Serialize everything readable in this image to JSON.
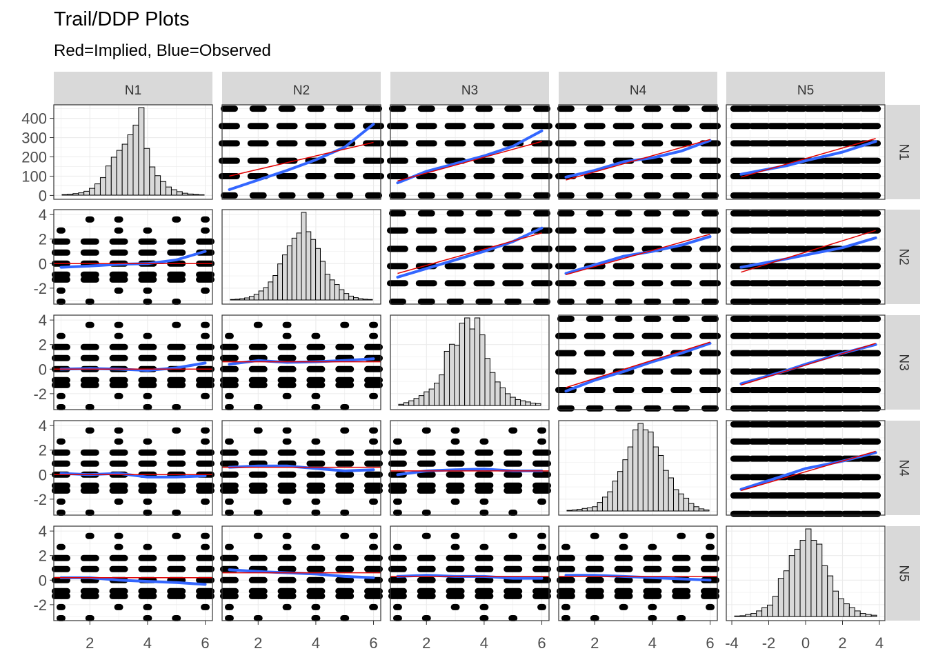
{
  "title": "Trail/DDP Plots",
  "subtitle": "Red=Implied, Blue=Observed",
  "colors": {
    "implied": "#e00000",
    "observed": "#3366ff",
    "strip": "#d9d9d9",
    "bar_fill": "#d9d9d9",
    "grid": "#ebebeb"
  },
  "chart_data": {
    "type": "scatter",
    "variables": [
      "N1",
      "N2",
      "N3",
      "N4",
      "N5"
    ],
    "legend_note": "Red=Implied, Blue=Observed",
    "x_axis": {
      "N1": {
        "ticks": [
          "2",
          "4",
          "6"
        ],
        "range": [
          0.75,
          6.25
        ]
      },
      "N2": {
        "ticks": [
          "2",
          "4",
          "6"
        ],
        "range": [
          0.75,
          6.25
        ]
      },
      "N3": {
        "ticks": [
          "2",
          "4",
          "6"
        ],
        "range": [
          0.75,
          6.25
        ]
      },
      "N4": {
        "ticks": [
          "2",
          "4",
          "6"
        ],
        "range": [
          0.75,
          6.25
        ]
      },
      "N5": {
        "ticks": [
          "-4",
          "-2",
          "0",
          "2",
          "4"
        ],
        "range": [
          -4.3,
          4.3
        ]
      }
    },
    "y_axis": {
      "N1": {
        "ticks": [
          "400",
          "300",
          "200",
          "100",
          "0"
        ],
        "range": [
          -20,
          470
        ]
      },
      "N2": {
        "ticks": [
          "4",
          "2",
          "0",
          "-2"
        ],
        "range": [
          -3.3,
          4.4
        ]
      },
      "N3": {
        "ticks": [
          "4",
          "2",
          "0",
          "-2"
        ],
        "range": [
          -3.3,
          4.4
        ]
      },
      "N4": {
        "ticks": [
          "4",
          "2",
          "0",
          "-2"
        ],
        "range": [
          -3.3,
          4.4
        ]
      },
      "N5": {
        "ticks": [
          "4",
          "2",
          "0",
          "-2"
        ],
        "range": [
          -3.3,
          4.4
        ]
      }
    },
    "histograms": {
      "N1": {
        "counts": [
          3,
          5,
          8,
          12,
          20,
          35,
          58,
          90,
          150,
          195,
          230,
          262,
          310,
          360,
          450,
          240,
          145,
          100,
          70,
          42,
          28,
          18,
          10,
          6,
          4,
          2
        ]
      },
      "N2": {
        "counts": [
          2,
          3,
          5,
          8,
          14,
          22,
          35,
          48,
          70,
          95,
          140,
          175,
          210,
          240,
          260,
          340,
          265,
          235,
          200,
          150,
          100,
          78,
          60,
          40,
          25,
          15,
          9,
          5,
          3,
          2
        ]
      },
      "N3": {
        "counts": [
          5,
          12,
          20,
          30,
          42,
          58,
          70,
          95,
          130,
          230,
          260,
          255,
          350,
          372,
          325,
          372,
          300,
          200,
          140,
          100,
          75,
          50,
          35,
          25,
          20,
          15,
          10,
          8
        ]
      },
      "N4": {
        "counts": [
          3,
          5,
          8,
          12,
          15,
          20,
          40,
          65,
          90,
          140,
          185,
          240,
          300,
          380,
          410,
          380,
          370,
          300,
          260,
          190,
          155,
          100,
          80,
          60,
          35,
          20,
          10,
          5
        ]
      },
      "N5": {
        "counts": [
          2,
          3,
          8,
          12,
          22,
          35,
          45,
          80,
          150,
          180,
          240,
          265,
          300,
          345,
          300,
          285,
          200,
          160,
          100,
          70,
          50,
          35,
          22,
          12,
          8,
          5
        ]
      }
    },
    "upper_levels": {
      "N1": [
        0,
        100,
        180,
        270,
        360,
        450
      ],
      "N2": [
        -3.1,
        -1.6,
        -0.2,
        1.2,
        2.7,
        4.1
      ],
      "N3": [
        -3.2,
        -1.7,
        -0.2,
        1.3,
        2.7,
        4.1
      ],
      "N4": [
        -3.2,
        -1.7,
        -0.2,
        1.3,
        2.7,
        4.1
      ],
      "N5": [
        -3.2,
        -1.7,
        -0.2,
        1.3,
        2.7,
        4.1
      ]
    },
    "panels": [
      {
        "row": "N1",
        "col": "N2",
        "implied": [
          [
            1,
            100
          ],
          [
            6,
            275
          ]
        ],
        "observed": [
          [
            1,
            30
          ],
          [
            2,
            80
          ],
          [
            3,
            130
          ],
          [
            4,
            185
          ],
          [
            5,
            250
          ],
          [
            6,
            370
          ]
        ]
      },
      {
        "row": "N1",
        "col": "N3",
        "implied": [
          [
            1,
            75
          ],
          [
            6,
            280
          ]
        ],
        "observed": [
          [
            1,
            65
          ],
          [
            2,
            125
          ],
          [
            3,
            165
          ],
          [
            4,
            205
          ],
          [
            5,
            255
          ],
          [
            6,
            335
          ]
        ]
      },
      {
        "row": "N1",
        "col": "N4",
        "implied": [
          [
            1,
            80
          ],
          [
            6,
            290
          ]
        ],
        "observed": [
          [
            1,
            95
          ],
          [
            2,
            130
          ],
          [
            3,
            175
          ],
          [
            4,
            195
          ],
          [
            5,
            230
          ],
          [
            6,
            285
          ]
        ]
      },
      {
        "row": "N1",
        "col": "N5",
        "implied": [
          [
            -3.5,
            95
          ],
          [
            3.8,
            295
          ]
        ],
        "observed": [
          [
            -3.5,
            110
          ],
          [
            -1,
            155
          ],
          [
            0,
            180
          ],
          [
            2,
            225
          ],
          [
            3.8,
            280
          ]
        ]
      },
      {
        "row": "N2",
        "col": "N3",
        "implied": [
          [
            1,
            -0.8
          ],
          [
            6,
            2.5
          ]
        ],
        "observed": [
          [
            1,
            -1.1
          ],
          [
            2,
            -0.4
          ],
          [
            3,
            0.3
          ],
          [
            4,
            1.0
          ],
          [
            5,
            1.8
          ],
          [
            6,
            2.9
          ]
        ]
      },
      {
        "row": "N2",
        "col": "N4",
        "implied": [
          [
            1,
            -0.9
          ],
          [
            6,
            2.4
          ]
        ],
        "observed": [
          [
            1,
            -0.8
          ],
          [
            2,
            -0.1
          ],
          [
            3,
            0.6
          ],
          [
            4,
            1.0
          ],
          [
            5,
            1.5
          ],
          [
            6,
            2.2
          ]
        ]
      },
      {
        "row": "N2",
        "col": "N5",
        "implied": [
          [
            -3.5,
            -0.7
          ],
          [
            3.8,
            2.7
          ]
        ],
        "observed": [
          [
            -3.5,
            -0.3
          ],
          [
            -1,
            0.4
          ],
          [
            0,
            0.7
          ],
          [
            2,
            1.3
          ],
          [
            3.8,
            2.1
          ]
        ]
      },
      {
        "row": "N3",
        "col": "N4",
        "implied": [
          [
            1,
            -1.5
          ],
          [
            6,
            2.2
          ]
        ],
        "observed": [
          [
            1,
            -1.8
          ],
          [
            2,
            -0.9
          ],
          [
            3,
            -0.2
          ],
          [
            4,
            0.6
          ],
          [
            5,
            1.3
          ],
          [
            6,
            2.1
          ]
        ]
      },
      {
        "row": "N3",
        "col": "N5",
        "implied": [
          [
            -3.5,
            -1.3
          ],
          [
            3.8,
            2.1
          ]
        ],
        "observed": [
          [
            -3.5,
            -1.2
          ],
          [
            -1,
            -0.1
          ],
          [
            0,
            0.4
          ],
          [
            2,
            1.3
          ],
          [
            3.8,
            2.0
          ]
        ]
      },
      {
        "row": "N4",
        "col": "N5",
        "implied": [
          [
            -3.5,
            -1.3
          ],
          [
            3.8,
            1.9
          ]
        ],
        "observed": [
          [
            -3.5,
            -1.2
          ],
          [
            -1,
            0.0
          ],
          [
            0,
            0.5
          ],
          [
            2,
            1.1
          ],
          [
            3.8,
            1.8
          ]
        ]
      },
      {
        "row": "N2",
        "col": "N1",
        "implied": [
          [
            0.75,
            0.0
          ],
          [
            6.25,
            0.0
          ]
        ],
        "observed": [
          [
            1,
            -0.3
          ],
          [
            2,
            -0.2
          ],
          [
            3,
            -0.05
          ],
          [
            4,
            0.0
          ],
          [
            5,
            0.3
          ],
          [
            6,
            1.0
          ]
        ]
      },
      {
        "row": "N3",
        "col": "N1",
        "implied": [
          [
            0.75,
            0.0
          ],
          [
            6.25,
            0.0
          ]
        ],
        "observed": [
          [
            1,
            0.0
          ],
          [
            2,
            0.05
          ],
          [
            3,
            0.0
          ],
          [
            4,
            -0.1
          ],
          [
            5,
            0.1
          ],
          [
            6,
            0.5
          ]
        ]
      },
      {
        "row": "N3",
        "col": "N2",
        "implied": [
          [
            0.75,
            0.6
          ],
          [
            6.25,
            0.6
          ]
        ],
        "observed": [
          [
            1,
            0.4
          ],
          [
            2,
            0.7
          ],
          [
            3,
            0.55
          ],
          [
            4,
            0.6
          ],
          [
            5,
            0.7
          ],
          [
            6,
            0.85
          ]
        ]
      },
      {
        "row": "N4",
        "col": "N1",
        "implied": [
          [
            0.75,
            0.0
          ],
          [
            6.25,
            0.0
          ]
        ],
        "observed": [
          [
            1,
            0.1
          ],
          [
            2,
            0.0
          ],
          [
            3,
            0.1
          ],
          [
            4,
            -0.2
          ],
          [
            5,
            -0.2
          ],
          [
            6,
            -0.1
          ]
        ]
      },
      {
        "row": "N4",
        "col": "N2",
        "implied": [
          [
            0.75,
            0.6
          ],
          [
            6.25,
            0.6
          ]
        ],
        "observed": [
          [
            1,
            0.6
          ],
          [
            2,
            0.7
          ],
          [
            3,
            0.7
          ],
          [
            4,
            0.5
          ],
          [
            5,
            0.3
          ],
          [
            6,
            0.4
          ]
        ]
      },
      {
        "row": "N4",
        "col": "N3",
        "implied": [
          [
            0.75,
            0.3
          ],
          [
            6.25,
            0.3
          ]
        ],
        "observed": [
          [
            1,
            0.0
          ],
          [
            2,
            0.3
          ],
          [
            3,
            0.4
          ],
          [
            4,
            0.45
          ],
          [
            5,
            0.3
          ],
          [
            6,
            0.3
          ]
        ]
      },
      {
        "row": "N5",
        "col": "N1",
        "implied": [
          [
            0.75,
            0.2
          ],
          [
            6.25,
            0.2
          ]
        ],
        "observed": [
          [
            1,
            0.2
          ],
          [
            2,
            0.2
          ],
          [
            3,
            0.0
          ],
          [
            4,
            -0.1
          ],
          [
            5,
            -0.2
          ],
          [
            6,
            -0.35
          ]
        ]
      },
      {
        "row": "N5",
        "col": "N2",
        "implied": [
          [
            0.75,
            0.6
          ],
          [
            6.25,
            0.6
          ]
        ],
        "observed": [
          [
            1,
            0.85
          ],
          [
            2,
            0.7
          ],
          [
            3,
            0.6
          ],
          [
            4,
            0.5
          ],
          [
            5,
            0.3
          ],
          [
            6,
            0.2
          ]
        ]
      },
      {
        "row": "N5",
        "col": "N3",
        "implied": [
          [
            0.75,
            0.3
          ],
          [
            6.25,
            0.3
          ]
        ],
        "observed": [
          [
            1,
            0.3
          ],
          [
            2,
            0.4
          ],
          [
            3,
            0.3
          ],
          [
            4,
            0.3
          ],
          [
            5,
            0.15
          ],
          [
            6,
            0.15
          ]
        ]
      },
      {
        "row": "N5",
        "col": "N4",
        "implied": [
          [
            0.75,
            0.3
          ],
          [
            6.25,
            0.3
          ]
        ],
        "observed": [
          [
            1,
            0.4
          ],
          [
            2,
            0.4
          ],
          [
            3,
            0.3
          ],
          [
            4,
            0.2
          ],
          [
            5,
            0.1
          ],
          [
            6,
            0.0
          ]
        ]
      }
    ]
  }
}
